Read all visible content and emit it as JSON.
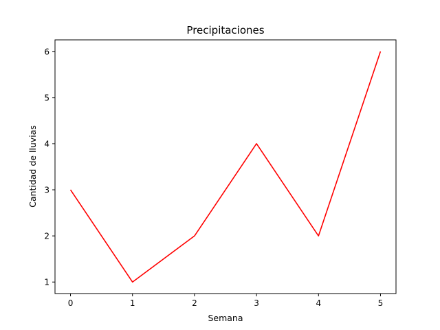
{
  "chart_data": {
    "type": "line",
    "title": "Precipitaciones",
    "xlabel": "Semana",
    "ylabel": "Cantidad de lluvias",
    "x": [
      0,
      1,
      2,
      3,
      4,
      5
    ],
    "series": [
      {
        "values": [
          3,
          1,
          2,
          4,
          2,
          6
        ],
        "color": "#ff0000"
      }
    ],
    "xlim": [
      -0.25,
      5.25
    ],
    "ylim": [
      0.75,
      6.25
    ],
    "xticks": [
      "0",
      "1",
      "2",
      "3",
      "4",
      "5"
    ],
    "yticks": [
      "1",
      "2",
      "3",
      "4",
      "5",
      "6"
    ],
    "grid": false,
    "legend": "none"
  }
}
